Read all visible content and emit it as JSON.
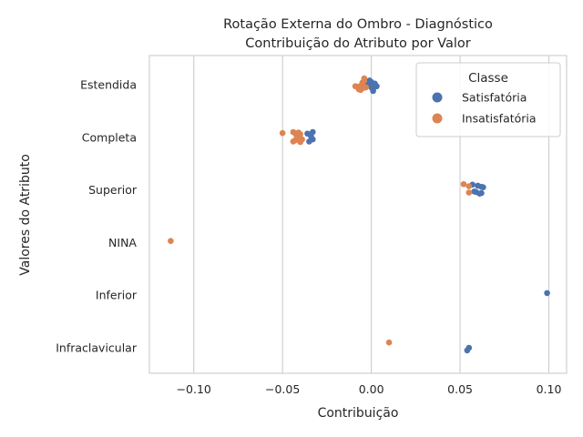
{
  "chart_data": {
    "type": "scatter",
    "title_line1": "Rotação Externa do Ombro - Diagnóstico",
    "title_line2": "Contribuição do Atributo por Valor",
    "xlabel": "Contribuição",
    "ylabel": "Valores do Atributo",
    "xlim": [
      -0.125,
      0.11
    ],
    "x_ticks": [
      -0.1,
      -0.05,
      0.0,
      0.05,
      0.1
    ],
    "x_tick_labels": [
      "−0.10",
      "−0.05",
      "0.00",
      "0.05",
      "0.10"
    ],
    "grid": "vertical",
    "categories": [
      "Estendida",
      "Completa",
      "Superior",
      "NINA",
      "Inferior",
      "Infraclavicular"
    ],
    "legend": {
      "title": "Classe",
      "placement": "top-right",
      "entries": [
        {
          "name": "Satisfatória",
          "color": "#4C72B0"
        },
        {
          "name": "Insatisfatória",
          "color": "#DD8452"
        }
      ]
    },
    "series": [
      {
        "name": "Satisfatória",
        "color": "#4C72B0",
        "points": [
          {
            "category": "Estendida",
            "x": -0.001,
            "jitter": -0.08
          },
          {
            "category": "Estendida",
            "x": 0.0,
            "jitter": 0.05
          },
          {
            "category": "Estendida",
            "x": 0.001,
            "jitter": 0.1
          },
          {
            "category": "Estendida",
            "x": 0.002,
            "jitter": -0.02
          },
          {
            "category": "Estendida",
            "x": 0.003,
            "jitter": 0.03
          },
          {
            "category": "Estendida",
            "x": -0.002,
            "jitter": 0.0
          },
          {
            "category": "Estendida",
            "x": 0.0,
            "jitter": -0.05
          },
          {
            "category": "Estendida",
            "x": 0.001,
            "jitter": 0.12
          },
          {
            "category": "Completa",
            "x": -0.033,
            "jitter": -0.1
          },
          {
            "category": "Completa",
            "x": -0.034,
            "jitter": -0.02
          },
          {
            "category": "Completa",
            "x": -0.035,
            "jitter": 0.08
          },
          {
            "category": "Completa",
            "x": -0.033,
            "jitter": 0.04
          },
          {
            "category": "Completa",
            "x": -0.036,
            "jitter": -0.07
          },
          {
            "category": "Superior",
            "x": 0.057,
            "jitter": -0.1
          },
          {
            "category": "Superior",
            "x": 0.058,
            "jitter": 0.03
          },
          {
            "category": "Superior",
            "x": 0.06,
            "jitter": -0.08
          },
          {
            "category": "Superior",
            "x": 0.061,
            "jitter": 0.07
          },
          {
            "category": "Superior",
            "x": 0.062,
            "jitter": -0.06
          },
          {
            "category": "Superior",
            "x": 0.062,
            "jitter": 0.06
          },
          {
            "category": "Superior",
            "x": 0.063,
            "jitter": -0.05
          },
          {
            "category": "Superior",
            "x": 0.059,
            "jitter": 0.04
          },
          {
            "category": "Inferior",
            "x": 0.099,
            "jitter": -0.04
          },
          {
            "category": "Infraclavicular",
            "x": 0.054,
            "jitter": 0.05
          },
          {
            "category": "Infraclavicular",
            "x": 0.055,
            "jitter": 0.0
          }
        ]
      },
      {
        "name": "Insatisfatória",
        "color": "#DD8452",
        "points": [
          {
            "category": "Estendida",
            "x": -0.004,
            "jitter": -0.12
          },
          {
            "category": "Estendida",
            "x": -0.004,
            "jitter": -0.08
          },
          {
            "category": "Estendida",
            "x": -0.005,
            "jitter": -0.04
          },
          {
            "category": "Estendida",
            "x": -0.006,
            "jitter": 0.02
          },
          {
            "category": "Estendida",
            "x": -0.004,
            "jitter": 0.06
          },
          {
            "category": "Estendida",
            "x": -0.003,
            "jitter": 0.05
          },
          {
            "category": "Estendida",
            "x": -0.006,
            "jitter": 0.1
          },
          {
            "category": "Estendida",
            "x": -0.008,
            "jitter": 0.04
          },
          {
            "category": "Estendida",
            "x": -0.009,
            "jitter": 0.03
          },
          {
            "category": "Estendida",
            "x": -0.007,
            "jitter": 0.09
          },
          {
            "category": "Completa",
            "x": -0.044,
            "jitter": -0.1
          },
          {
            "category": "Completa",
            "x": -0.043,
            "jitter": -0.08
          },
          {
            "category": "Completa",
            "x": -0.041,
            "jitter": -0.09
          },
          {
            "category": "Completa",
            "x": -0.04,
            "jitter": -0.06
          },
          {
            "category": "Completa",
            "x": -0.042,
            "jitter": -0.02
          },
          {
            "category": "Completa",
            "x": -0.04,
            "jitter": 0.02
          },
          {
            "category": "Completa",
            "x": -0.041,
            "jitter": 0.05
          },
          {
            "category": "Completa",
            "x": -0.039,
            "jitter": 0.04
          },
          {
            "category": "Completa",
            "x": -0.043,
            "jitter": 0.06
          },
          {
            "category": "Completa",
            "x": -0.044,
            "jitter": 0.08
          },
          {
            "category": "Completa",
            "x": -0.04,
            "jitter": 0.09
          },
          {
            "category": "Completa",
            "x": -0.05,
            "jitter": -0.08
          },
          {
            "category": "Superior",
            "x": 0.052,
            "jitter": -0.11
          },
          {
            "category": "Superior",
            "x": 0.055,
            "jitter": -0.07
          },
          {
            "category": "Superior",
            "x": 0.055,
            "jitter": 0.05
          },
          {
            "category": "NINA",
            "x": -0.113,
            "jitter": -0.03
          },
          {
            "category": "Infraclavicular",
            "x": 0.01,
            "jitter": -0.1
          }
        ]
      }
    ]
  }
}
